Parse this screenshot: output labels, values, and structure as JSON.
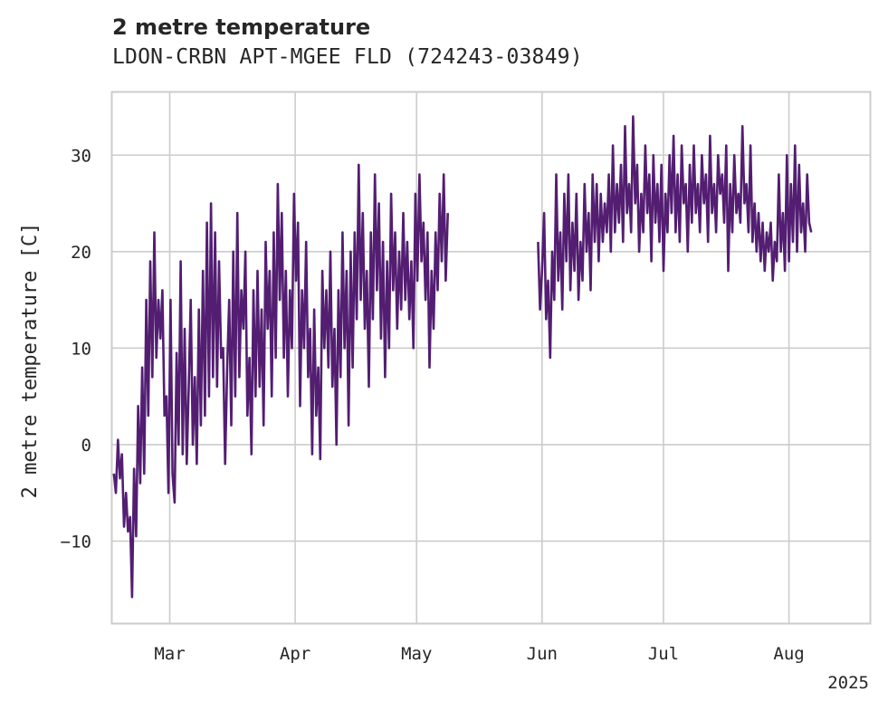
{
  "chart_data": {
    "type": "line",
    "title": "2 metre temperature",
    "subtitle": "LDON-CRBN APT-MGEE FLD (724243-03849)",
    "xlabel": "",
    "ylabel": "2 metre temperature [C]",
    "ylim": [
      -18.5,
      36.5
    ],
    "yticks": [
      -10,
      0,
      10,
      20,
      30
    ],
    "xlim_days": [
      -14.2,
      173
    ],
    "xticks": [
      {
        "label": "Mar",
        "day": 0
      },
      {
        "label": "Apr",
        "day": 31
      },
      {
        "label": "May",
        "day": 61
      },
      {
        "label": "Jun",
        "day": 92
      },
      {
        "label": "Jul",
        "day": 122
      },
      {
        "label": "Aug",
        "day": 153
      }
    ],
    "year_label": "2025",
    "grid": true,
    "line_color": "#531e72",
    "series": [
      {
        "name": "2 metre temperature",
        "segments": [
          {
            "start_day": -13.8,
            "step_days": 0.5,
            "values": [
              -3.0,
              -5.0,
              0.5,
              -3.5,
              -1.0,
              -8.5,
              -5.0,
              -9.0,
              -7.5,
              -15.8,
              -2.5,
              -9.5,
              4.0,
              -4.0,
              8.0,
              -3.0,
              15.0,
              3.0,
              19.0,
              7.0,
              22.0,
              9.0,
              15.0,
              11.0,
              16.0,
              3.0,
              5.0,
              -5.0,
              15.0,
              -3.0,
              -6.0,
              9.5,
              0.0,
              19.0,
              -1.0,
              12.0,
              -2.0,
              6.0,
              15.0,
              0.0,
              7.0,
              -2.0,
              14.0,
              2.0,
              18.0,
              3.0,
              23.0,
              5.0,
              25.0,
              7.0,
              22.0,
              6.0,
              19.0,
              9.0,
              10.0,
              -2.0,
              8.0,
              15.0,
              2.0,
              20.0,
              5.0,
              24.0,
              7.0,
              16.0,
              12.0,
              20.0,
              3.0,
              9.0,
              -1.0,
              16.0,
              5.0,
              18.0,
              6.0,
              14.0,
              2.0,
              21.0,
              12.0,
              18.0,
              5.0,
              22.0,
              9.0,
              27.0,
              15.0,
              24.0,
              9.0,
              18.0,
              5.0,
              16.0,
              10.0,
              26.0,
              17.0,
              23.0,
              4.0,
              16.0,
              10.0,
              21.0,
              7.0,
              12.0,
              -1.0,
              14.0,
              3.0,
              8.0,
              -1.5,
              18.0,
              10.0,
              16.0,
              8.0,
              20.0,
              6.0,
              12.0,
              0.0,
              16.0,
              7.0,
              22.0,
              10.0,
              18.0,
              2.0,
              20.0,
              8.0,
              22.0,
              13.0,
              29.0,
              15.0,
              24.0,
              12.0,
              18.0,
              6.0,
              22.0,
              13.0,
              28.0,
              16.0,
              25.0,
              11.0,
              21.0,
              7.0,
              19.0,
              10.0,
              26.0,
              16.0,
              22.0,
              12.0,
              20.0,
              14.0,
              24.0,
              15.0,
              21.0,
              13.0,
              19.0,
              10.0,
              26.0,
              17.0,
              28.0,
              19.0,
              23.0,
              15.0,
              22.0,
              8.0,
              18.0,
              12.0,
              22.0,
              16.0,
              26.0,
              19.0,
              28.0,
              17.0,
              24.0
            ]
          },
          {
            "start_day": 91.0,
            "step_days": 0.5,
            "values": [
              21.0,
              14.0,
              18.0,
              24.0,
              13.0,
              17.0,
              9.0,
              20.0,
              15.0,
              28.0,
              17.0,
              22.0,
              14.0,
              26.0,
              19.0,
              28.0,
              16.0,
              23.0,
              18.0,
              26.0,
              15.0,
              21.0,
              17.0,
              27.0,
              20.0,
              24.0,
              16.0,
              28.0,
              21.0,
              27.0,
              19.0,
              26.0,
              21.0,
              25.0,
              22.0,
              28.0,
              20.0,
              31.0,
              22.0,
              27.0,
              23.0,
              29.0,
              21.0,
              33.0,
              24.0,
              27.0,
              22.0,
              34.0,
              25.0,
              29.0,
              20.0,
              26.0,
              22.0,
              31.0,
              24.0,
              28.0,
              19.0,
              30.0,
              23.0,
              27.0,
              21.0,
              29.0,
              18.0,
              26.0,
              22.0,
              30.0,
              24.0,
              32.0,
              22.0,
              28.0,
              21.0,
              31.0,
              25.0,
              27.0,
              20.0,
              29.0,
              23.0,
              31.0,
              24.0,
              27.0,
              22.0,
              30.0,
              25.0,
              28.0,
              21.0,
              32.0,
              24.0,
              27.0,
              22.0,
              30.0,
              26.0,
              28.0,
              23.0,
              31.0,
              18.0,
              27.0,
              22.0,
              30.0,
              24.0,
              26.0,
              23.0,
              33.0,
              25.0,
              27.0,
              22.0,
              31.0,
              21.0,
              25.0,
              20.0,
              24.0,
              19.0,
              23.0,
              18.0,
              22.0,
              20.0,
              23.0,
              17.0,
              21.0,
              19.0,
              28.0,
              20.0,
              24.0,
              18.0,
              30.0,
              19.0,
              27.0,
              21.0,
              31.0,
              20.0,
              29.0,
              22.0,
              25.0,
              20.0,
              28.0,
              23.0,
              22.0
            ]
          }
        ]
      }
    ]
  }
}
